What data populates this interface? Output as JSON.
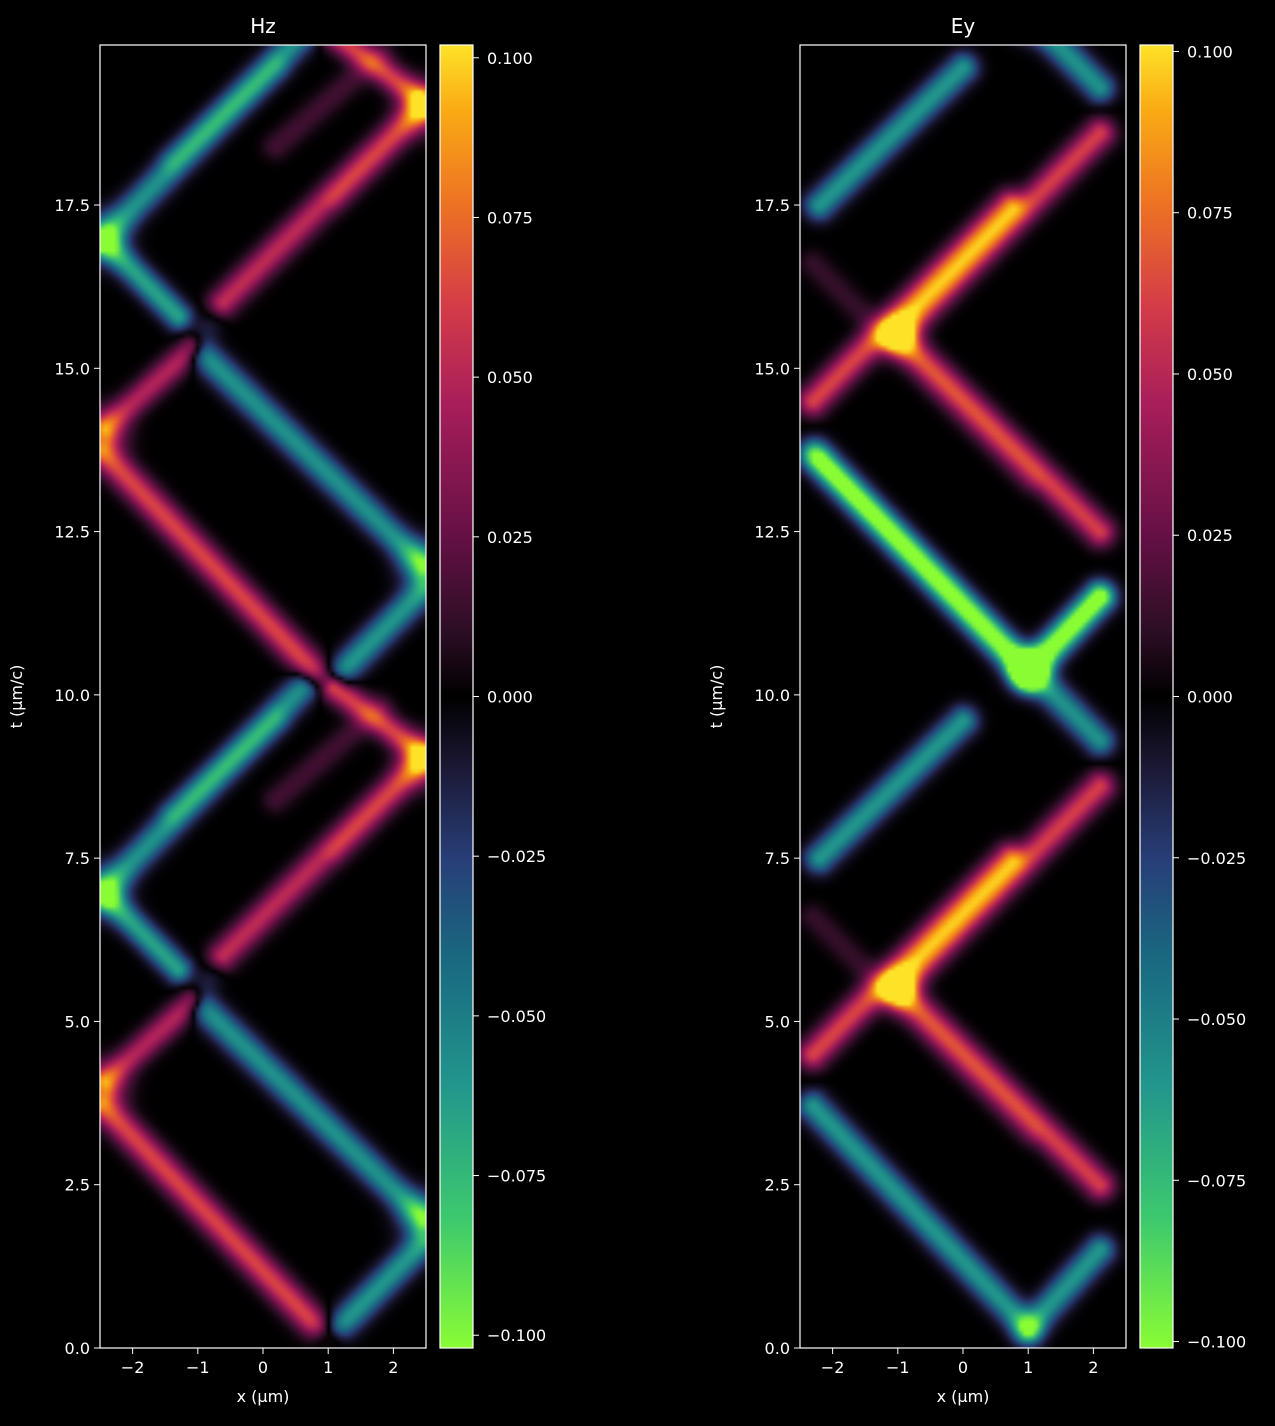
{
  "chart_data": [
    {
      "type": "heatmap",
      "title": "Hz",
      "xlabel": "x (µm)",
      "ylabel": "t (µm/c)",
      "xlim": [
        -2.5,
        2.5
      ],
      "ylim": [
        0,
        19.95
      ],
      "xticks": [
        -2,
        -1,
        0,
        1,
        2
      ],
      "xtick_labels": [
        "−2",
        "−1",
        "0",
        "1",
        "2"
      ],
      "yticks": [
        0,
        2.5,
        5,
        7.5,
        10,
        12.5,
        15,
        17.5
      ],
      "ytick_labels": [
        "0.0",
        "2.5",
        "5.0",
        "7.5",
        "10.0",
        "12.5",
        "15.0",
        "17.5"
      ],
      "colorbar": {
        "min": -0.102,
        "max": 0.102,
        "ticks": [
          0.1,
          0.075,
          0.05,
          0.025,
          0,
          -0.025,
          -0.05,
          -0.075,
          -0.1
        ],
        "tick_labels": [
          "0.100",
          "0.075",
          "0.050",
          "0.025",
          "0.000",
          "−0.025",
          "−0.050",
          "−0.075",
          "−0.100"
        ]
      },
      "pattern": "Hz"
    },
    {
      "type": "heatmap",
      "title": "Ey",
      "xlabel": "x (µm)",
      "ylabel": "t (µm/c)",
      "xlim": [
        -2.5,
        2.5
      ],
      "ylim": [
        0,
        19.95
      ],
      "xticks": [
        -2,
        -1,
        0,
        1,
        2
      ],
      "xtick_labels": [
        "−2",
        "−1",
        "0",
        "1",
        "2"
      ],
      "yticks": [
        0,
        2.5,
        5,
        7.5,
        10,
        12.5,
        15,
        17.5
      ],
      "ytick_labels": [
        "0.0",
        "2.5",
        "5.0",
        "7.5",
        "10.0",
        "12.5",
        "15.0",
        "17.5"
      ],
      "colorbar": {
        "min": -0.101,
        "max": 0.101,
        "ticks": [
          0.1,
          0.075,
          0.05,
          0.025,
          0,
          -0.025,
          -0.05,
          -0.075,
          -0.1
        ],
        "tick_labels": [
          "0.100",
          "0.075",
          "0.050",
          "0.025",
          "0.000",
          "−0.025",
          "−0.050",
          "−0.075",
          "−0.100"
        ]
      },
      "pattern": "Ey"
    }
  ]
}
